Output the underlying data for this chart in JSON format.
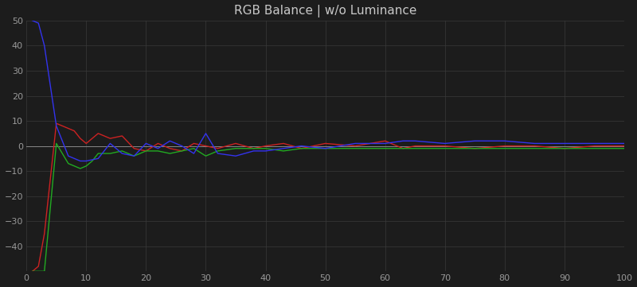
{
  "title": "RGB Balance | w/o Luminance",
  "bg_color": "#1c1c1c",
  "grid_color": "#3a3a3a",
  "title_color": "#c8c8c8",
  "tick_color": "#999999",
  "xlim": [
    0,
    100
  ],
  "ylim": [
    -50,
    50
  ],
  "xticks": [
    0,
    10,
    20,
    30,
    40,
    50,
    60,
    70,
    80,
    90,
    100
  ],
  "yticks": [
    -40,
    -30,
    -20,
    -10,
    0,
    10,
    20,
    30,
    40,
    50
  ],
  "red_x": [
    1,
    2,
    3,
    5,
    7,
    8,
    9,
    10,
    12,
    14,
    16,
    18,
    20,
    22,
    24,
    26,
    28,
    30,
    32,
    35,
    38,
    40,
    43,
    46,
    50,
    55,
    60,
    63,
    65,
    70,
    75,
    80,
    85,
    90,
    95,
    100
  ],
  "red_y": [
    -50,
    -48,
    -35,
    9,
    7,
    6,
    3,
    1,
    5,
    3,
    4,
    -1,
    -2,
    1,
    -1,
    -2,
    1,
    0,
    -1,
    1,
    -1,
    0,
    1,
    -1,
    1,
    0,
    2,
    -1,
    0,
    0,
    -1,
    0,
    0,
    -1,
    0,
    0
  ],
  "green_x": [
    1,
    3,
    5,
    7,
    9,
    10,
    11,
    12,
    14,
    16,
    18,
    20,
    22,
    24,
    26,
    28,
    30,
    32,
    35,
    38,
    40,
    43,
    46,
    50,
    55,
    60,
    63,
    65,
    70,
    75,
    80,
    85,
    90,
    95,
    100
  ],
  "green_y": [
    -50,
    -50,
    1,
    -7,
    -9,
    -8,
    -6,
    -3,
    -3,
    -2,
    -4,
    -2,
    -2,
    -3,
    -2,
    -1,
    -4,
    -2,
    -1,
    -1,
    -1,
    -2,
    -1,
    -1,
    -1,
    -1,
    -1,
    -1,
    -1,
    -1,
    -1,
    -1,
    -1,
    -1,
    -1
  ],
  "blue_x": [
    1,
    2,
    3,
    5,
    7,
    9,
    10,
    12,
    14,
    16,
    18,
    20,
    22,
    24,
    26,
    28,
    30,
    32,
    35,
    38,
    40,
    43,
    46,
    50,
    55,
    60,
    63,
    65,
    70,
    75,
    80,
    85,
    90,
    95,
    100
  ],
  "blue_y": [
    50,
    49,
    40,
    8,
    -4,
    -6,
    -6,
    -5,
    1,
    -3,
    -4,
    1,
    -1,
    2,
    0,
    -3,
    5,
    -3,
    -4,
    -2,
    -2,
    -1,
    0,
    -1,
    1,
    1,
    2,
    2,
    1,
    2,
    2,
    1,
    1,
    1,
    1
  ],
  "line_width": 1.0,
  "red_color": "#cc2222",
  "green_color": "#22aa22",
  "blue_color": "#3333ee"
}
